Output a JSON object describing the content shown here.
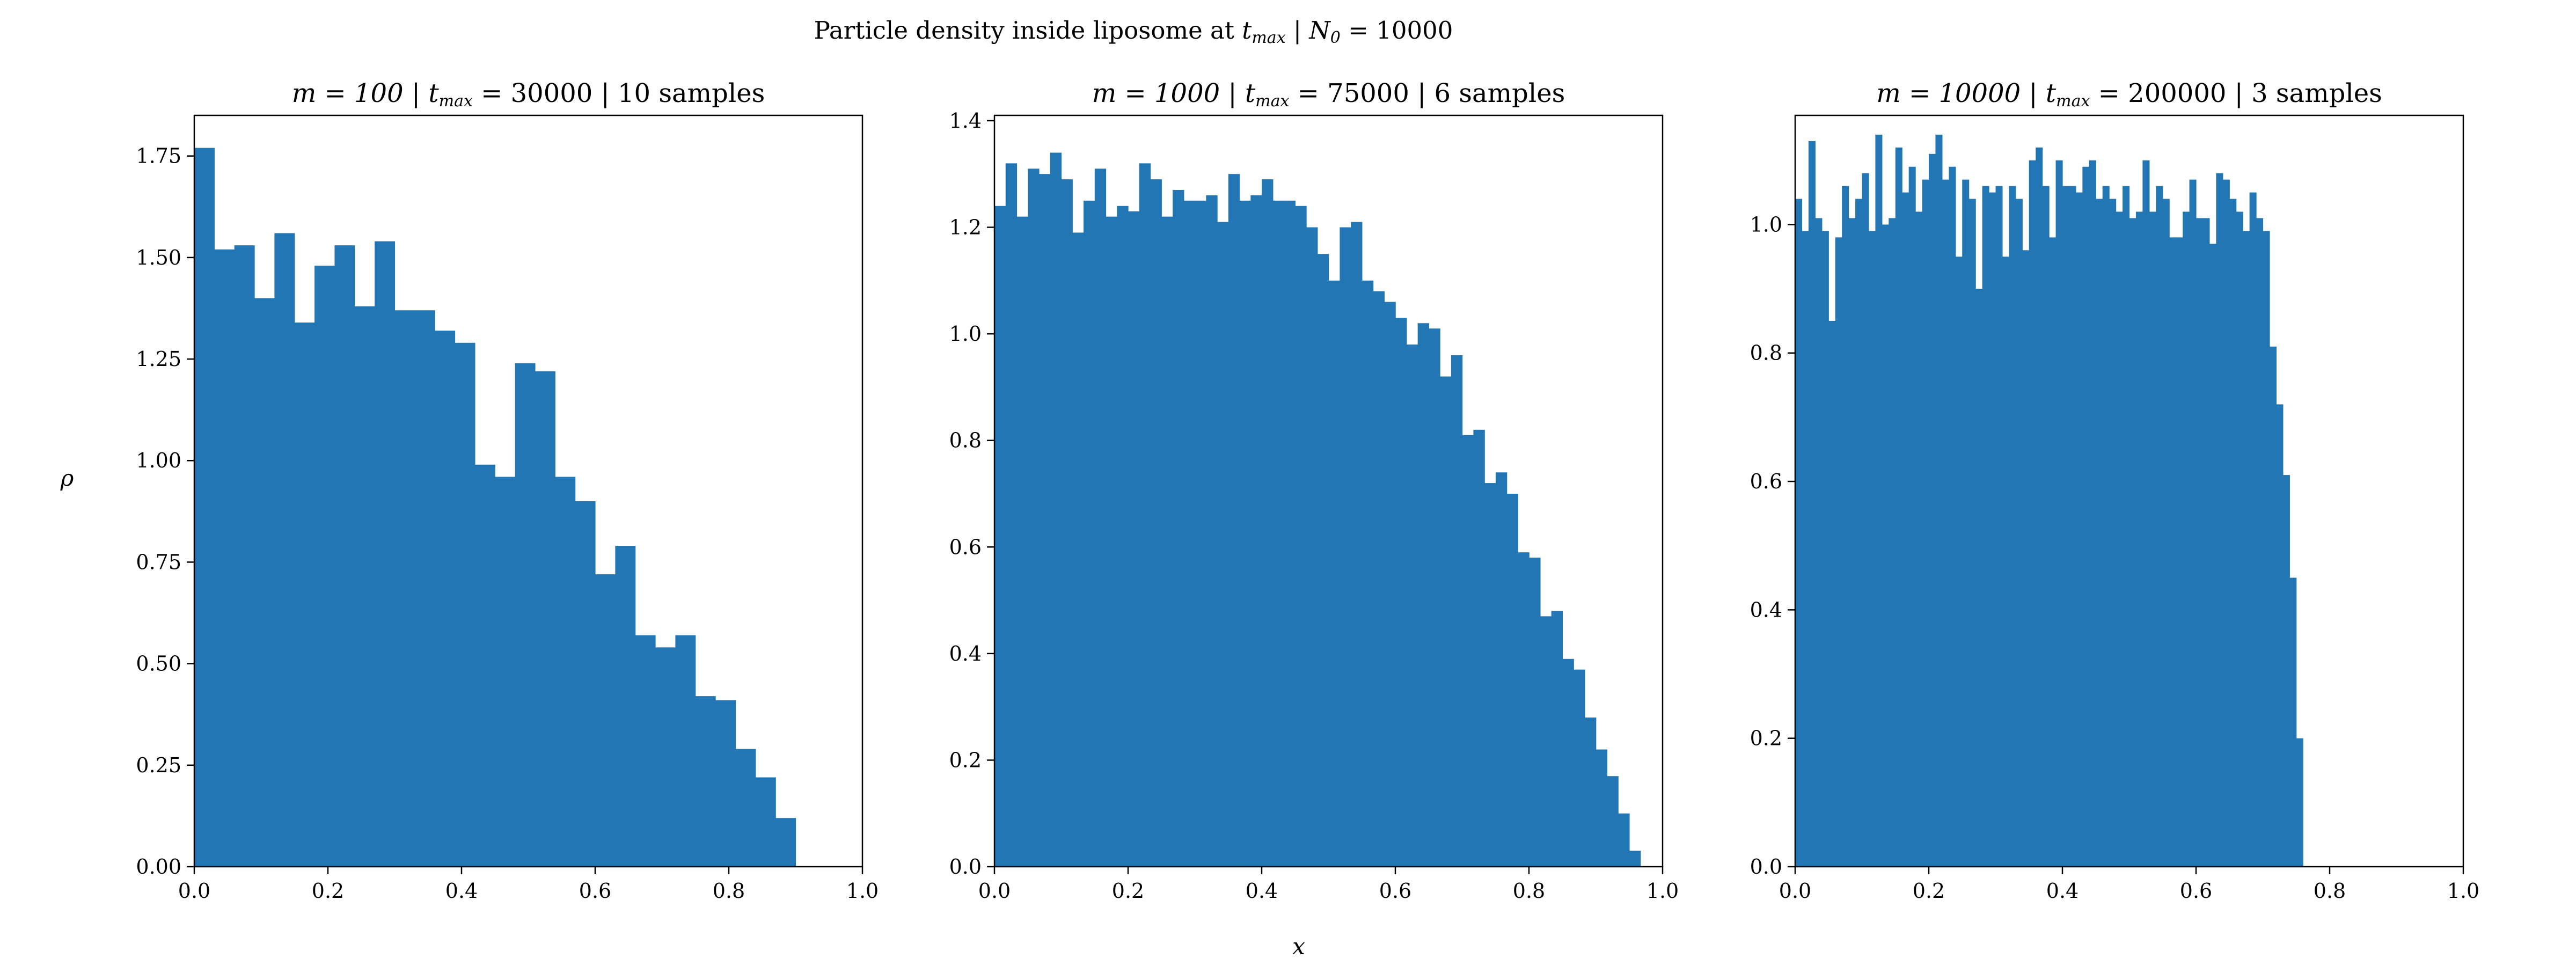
{
  "figure": {
    "suptitle_text": "Particle density inside liposome at ",
    "suptitle_tvar": "t",
    "suptitle_tsub": "max",
    "suptitle_sep": " | ",
    "suptitle_nvar": "N",
    "suptitle_nsub": "0",
    "suptitle_nval": " = 10000",
    "xlabel": "x",
    "ylabel": "ρ",
    "bar_color": "#2176b3"
  },
  "chart_data": [
    {
      "type": "bar",
      "title_m": "m = 100",
      "title_t": "t",
      "title_tsub": "max",
      "title_tval": " = 30000",
      "title_rest": " | 10 samples",
      "bin_width": 0.03,
      "x_start": 0.0,
      "values": [
        1.77,
        1.52,
        1.53,
        1.4,
        1.56,
        1.34,
        1.48,
        1.53,
        1.38,
        1.54,
        1.37,
        1.37,
        1.32,
        1.29,
        0.99,
        0.96,
        1.24,
        1.22,
        0.96,
        0.9,
        0.72,
        0.79,
        0.57,
        0.54,
        0.57,
        0.42,
        0.41,
        0.29,
        0.22,
        0.12
      ],
      "xlim": [
        0,
        1.0
      ],
      "ylim": [
        0,
        1.85
      ],
      "xticks": [
        "0.0",
        "0.2",
        "0.4",
        "0.6",
        "0.8",
        "1.0"
      ],
      "yticks": [
        "0.00",
        "0.25",
        "0.50",
        "0.75",
        "1.00",
        "1.25",
        "1.50",
        "1.75"
      ]
    },
    {
      "type": "bar",
      "title_m": "m = 1000",
      "title_t": "t",
      "title_tsub": "max",
      "title_tval": " = 75000",
      "title_rest": " | 6 samples",
      "bin_width": 0.01667,
      "x_start": 0.0,
      "values": [
        1.24,
        1.32,
        1.22,
        1.31,
        1.3,
        1.34,
        1.29,
        1.19,
        1.25,
        1.31,
        1.22,
        1.24,
        1.23,
        1.32,
        1.29,
        1.22,
        1.27,
        1.25,
        1.25,
        1.26,
        1.21,
        1.3,
        1.25,
        1.26,
        1.29,
        1.25,
        1.25,
        1.24,
        1.2,
        1.15,
        1.1,
        1.2,
        1.21,
        1.1,
        1.08,
        1.06,
        1.03,
        0.98,
        1.02,
        1.01,
        0.92,
        0.96,
        0.81,
        0.82,
        0.72,
        0.74,
        0.7,
        0.59,
        0.58,
        0.47,
        0.48,
        0.39,
        0.37,
        0.28,
        0.22,
        0.17,
        0.1,
        0.03
      ],
      "xlim": [
        0,
        1.0
      ],
      "ylim": [
        0,
        1.41
      ],
      "xticks": [
        "0.0",
        "0.2",
        "0.4",
        "0.6",
        "0.8",
        "1.0"
      ],
      "yticks": [
        "0.0",
        "0.2",
        "0.4",
        "0.6",
        "0.8",
        "1.0",
        "1.2",
        "1.4"
      ]
    },
    {
      "type": "bar",
      "title_m": "m = 10000",
      "title_t": "t",
      "title_tsub": "max",
      "title_tval": " = 200000",
      "title_rest": " | 3 samples",
      "bin_width": 0.01,
      "x_start": 0.0,
      "values": [
        1.04,
        0.99,
        1.13,
        1.01,
        0.99,
        0.85,
        0.98,
        1.06,
        1.01,
        1.04,
        1.08,
        0.99,
        1.14,
        1.0,
        1.01,
        1.12,
        1.05,
        1.09,
        1.02,
        1.07,
        1.11,
        1.14,
        1.07,
        1.09,
        0.95,
        1.07,
        1.04,
        0.9,
        1.06,
        1.05,
        1.06,
        0.95,
        1.06,
        1.04,
        0.96,
        1.1,
        1.12,
        1.06,
        0.98,
        1.1,
        1.06,
        1.06,
        1.05,
        1.09,
        1.1,
        1.04,
        1.06,
        1.04,
        1.02,
        1.06,
        1.01,
        1.02,
        1.1,
        1.02,
        1.06,
        1.04,
        0.98,
        0.98,
        1.02,
        1.07,
        1.01,
        1.01,
        0.97,
        1.08,
        1.07,
        1.04,
        1.02,
        0.99,
        1.05,
        1.01,
        0.99,
        0.81,
        0.72,
        0.61,
        0.45,
        0.2
      ],
      "xlim": [
        0,
        1.0
      ],
      "ylim": [
        0,
        1.17
      ],
      "xticks": [
        "0.0",
        "0.2",
        "0.4",
        "0.6",
        "0.8",
        "1.0"
      ],
      "yticks": [
        "0.0",
        "0.2",
        "0.4",
        "0.6",
        "0.8",
        "1.0"
      ]
    }
  ]
}
